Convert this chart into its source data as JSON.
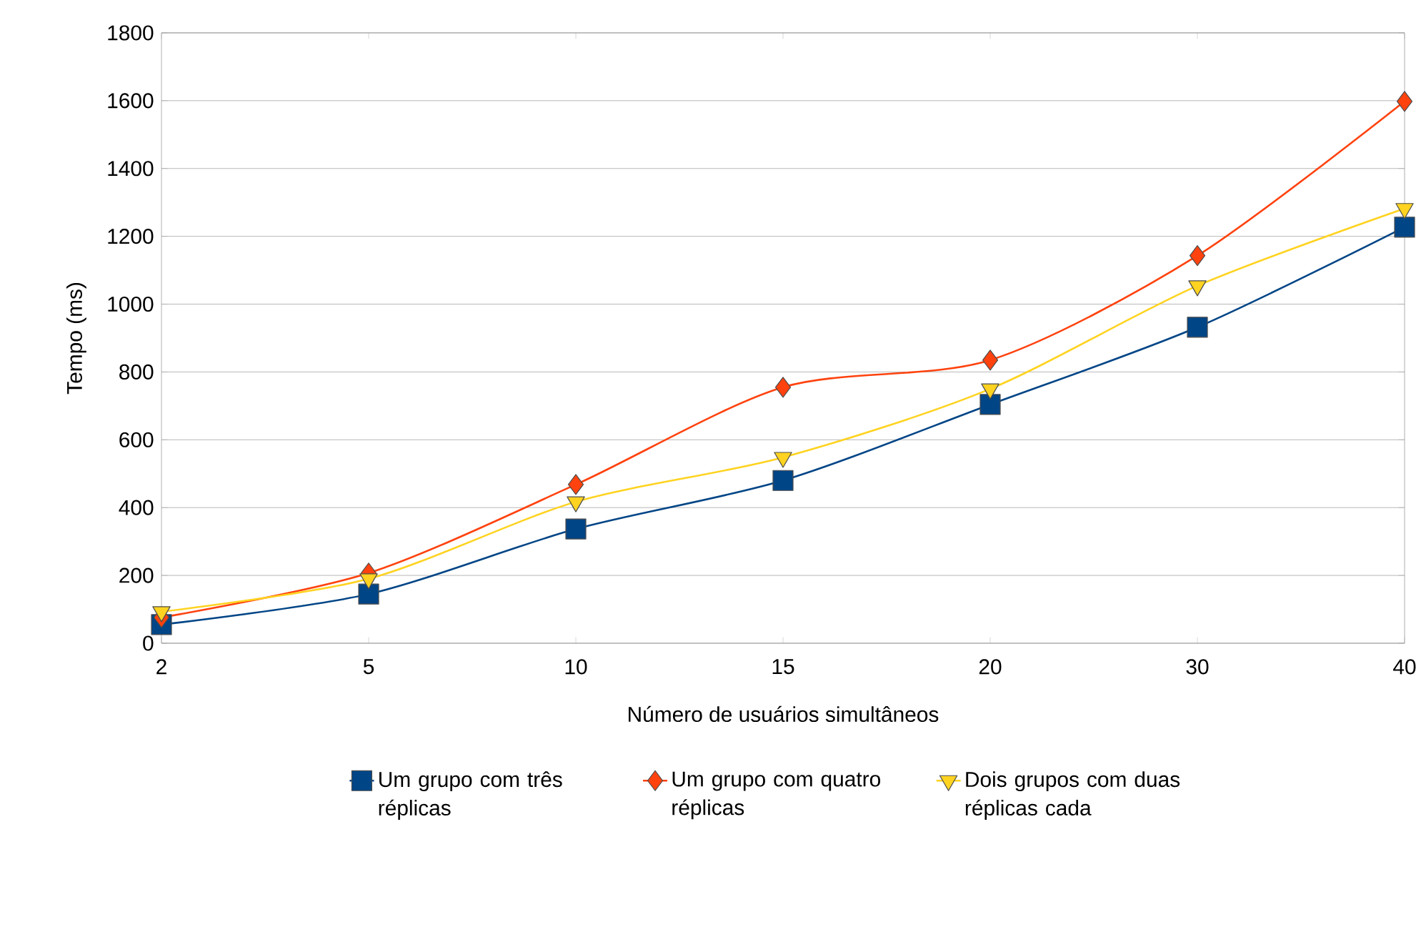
{
  "chart_data": {
    "type": "line",
    "xlabel": "Número de usuários simultâneos",
    "ylabel": "Tempo (ms)",
    "categories": [
      "2",
      "5",
      "10",
      "15",
      "20",
      "30",
      "40"
    ],
    "ylim": [
      0,
      1800
    ],
    "yticks": [
      0,
      200,
      400,
      600,
      800,
      1000,
      1200,
      1400,
      1600,
      1800
    ],
    "grid": "y",
    "legend": "bottom",
    "series": [
      {
        "name": "Um grupo com três réplicas",
        "color": "#004586",
        "marker": "square",
        "values": [
          55,
          145,
          337,
          480,
          704,
          932,
          1227
        ]
      },
      {
        "name": "Um grupo com quatro réplicas",
        "color": "#ff420e",
        "marker": "diamond",
        "values": [
          76,
          207,
          468,
          755,
          835,
          1143,
          1598
        ]
      },
      {
        "name": "Dois grupos com duas réplicas cada",
        "color": "#ffd320",
        "marker": "triangle",
        "values": [
          93,
          190,
          417,
          548,
          750,
          1054,
          1282
        ]
      }
    ]
  }
}
